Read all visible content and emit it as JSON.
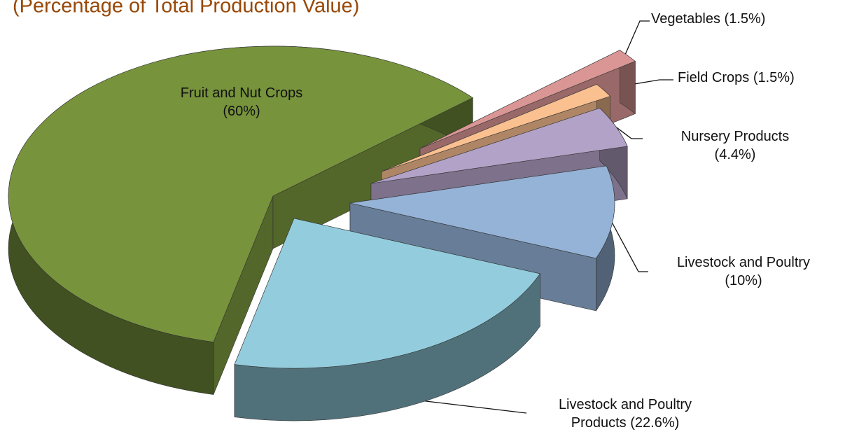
{
  "chart_data": {
    "type": "pie3d",
    "title": "(Percentage of Total Production Value)",
    "categories": [
      "Vegetables",
      "Field Crops",
      "Nursery Products",
      "Livestock and Poultry",
      "Livestock and Poultry Products",
      "Fruit and Nut Crops"
    ],
    "values": [
      1.5,
      1.5,
      4.4,
      10,
      22.6,
      60
    ],
    "value_labels": [
      "(1.5%)",
      "(1.5%)",
      "(4.4%)",
      "(10%)",
      "(22.6%)",
      "(60%)"
    ],
    "colors": [
      "#d99694",
      "#fac090",
      "#b3a2c7",
      "#95b3d7",
      "#93cddd",
      "#77933c"
    ]
  }
}
